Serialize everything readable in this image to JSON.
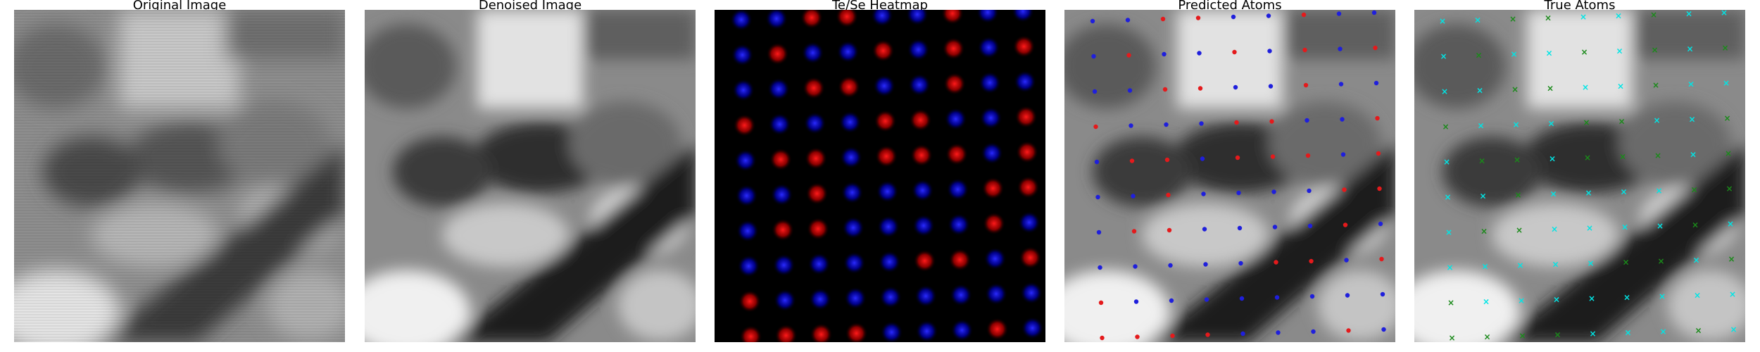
{
  "figure": {
    "panels": [
      {
        "title": "Original Image"
      },
      {
        "title": "Denoised Image"
      },
      {
        "title": "Te/Se Heatmap"
      },
      {
        "title": "Predicted Atoms"
      },
      {
        "title": "True Atoms"
      }
    ]
  },
  "colors": {
    "te": "#ff0000",
    "se": "#0000ff",
    "predicted_te": "#e41a1c",
    "predicted_se": "#1f1fdc",
    "true_cyan": "#00e5e5",
    "true_green": "#1a8a1a",
    "heatmap_bg": "#000000"
  }
}
